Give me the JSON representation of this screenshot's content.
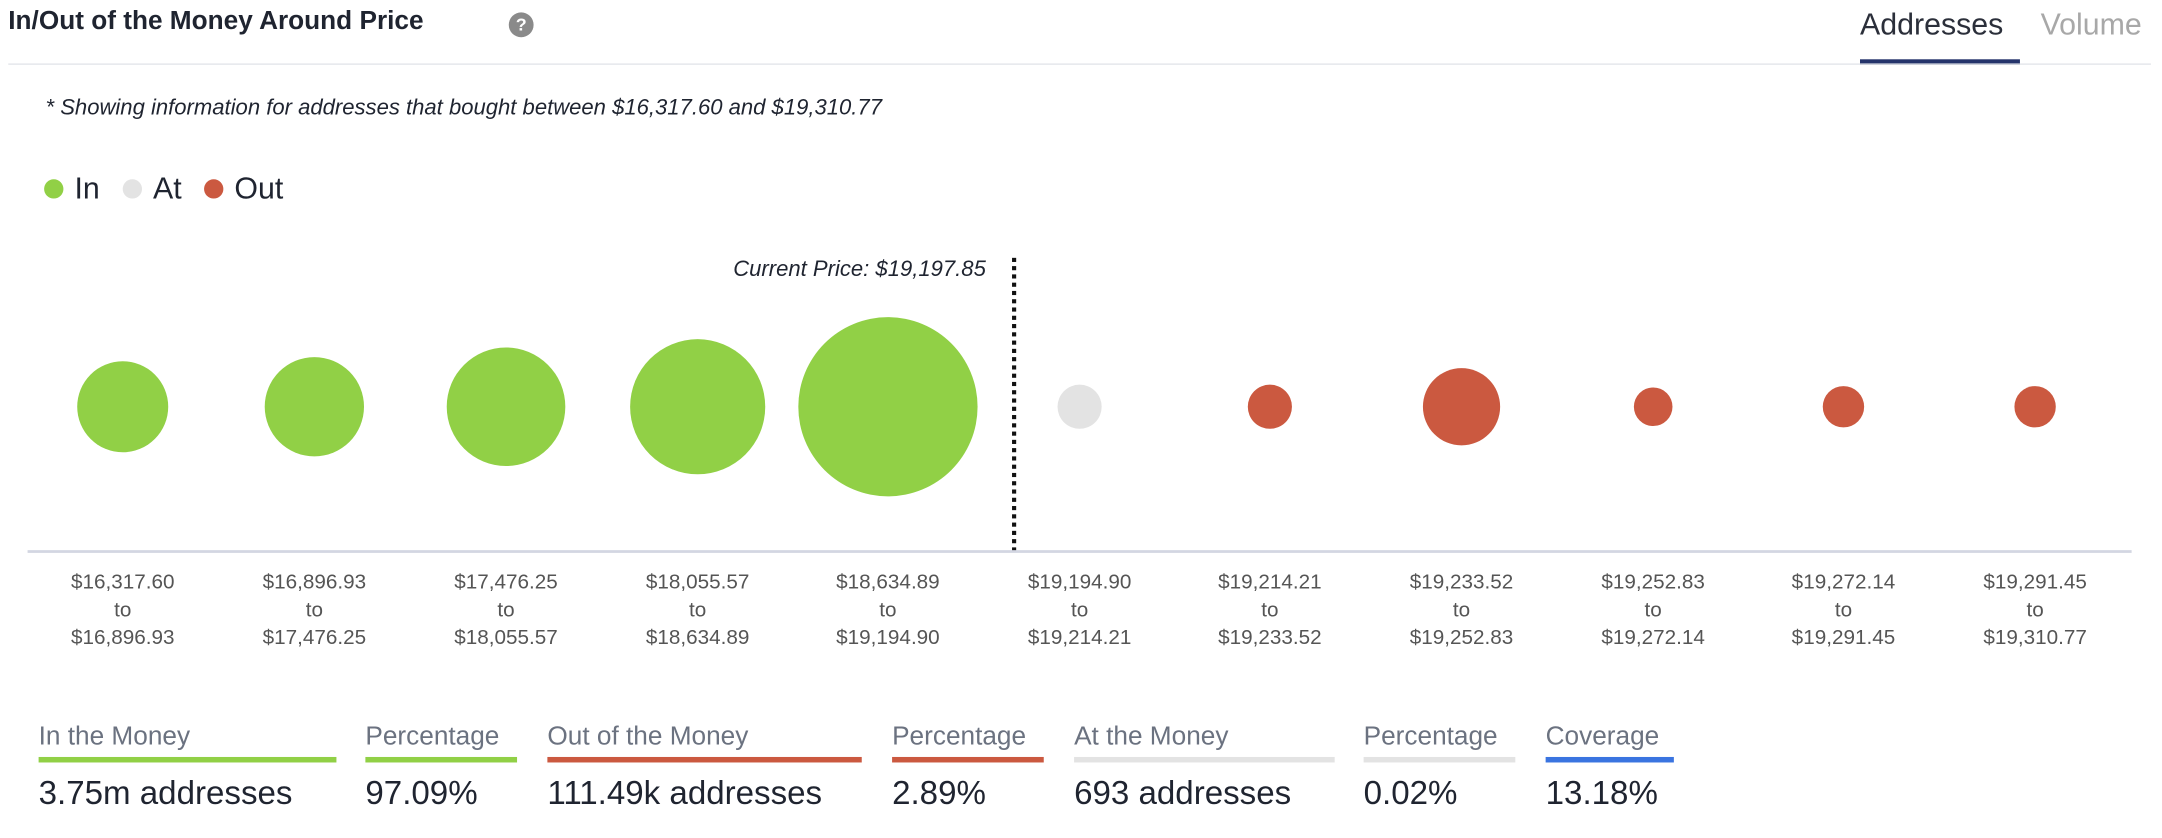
{
  "header": {
    "title": "In/Out of the Money Around Price",
    "help_icon": "question-circle-icon",
    "tabs": [
      {
        "label": "Addresses",
        "active": true
      },
      {
        "label": "Volume",
        "active": false
      }
    ]
  },
  "note": "* Showing information for addresses that bought between $16,317.60 and $19,310.77",
  "colors": {
    "in": "#91d046",
    "at": "#e3e3e3",
    "out": "#cb5940",
    "coverage": "#3a74e0",
    "tab_active": "#25346b"
  },
  "chart_data": {
    "type": "scatter",
    "title": "In/Out of the Money Around Price",
    "legend": [
      {
        "label": "In",
        "key": "in"
      },
      {
        "label": "At",
        "key": "at"
      },
      {
        "label": "Out",
        "key": "out"
      }
    ],
    "legend_placement": "top-left",
    "current_price_label": "Current Price: $19,197.85",
    "current_price_after_index": 4,
    "categories": [
      {
        "from": "$16,317.60",
        "sep": "to",
        "to": "$16,896.93",
        "status": "in",
        "relative_size": 33
      },
      {
        "from": "$16,896.93",
        "sep": "to",
        "to": "$17,476.25",
        "status": "in",
        "relative_size": 36
      },
      {
        "from": "$17,476.25",
        "sep": "to",
        "to": "$18,055.57",
        "status": "in",
        "relative_size": 43
      },
      {
        "from": "$18,055.57",
        "sep": "to",
        "to": "$18,634.89",
        "status": "in",
        "relative_size": 49
      },
      {
        "from": "$18,634.89",
        "sep": "to",
        "to": "$19,194.90",
        "status": "in",
        "relative_size": 65
      },
      {
        "from": "$19,194.90",
        "sep": "to",
        "to": "$19,214.21",
        "status": "at",
        "relative_size": 16
      },
      {
        "from": "$19,214.21",
        "sep": "to",
        "to": "$19,233.52",
        "status": "out",
        "relative_size": 16
      },
      {
        "from": "$19,233.52",
        "sep": "to",
        "to": "$19,252.83",
        "status": "out",
        "relative_size": 28
      },
      {
        "from": "$19,252.83",
        "sep": "to",
        "to": "$19,272.14",
        "status": "out",
        "relative_size": 14
      },
      {
        "from": "$19,272.14",
        "sep": "to",
        "to": "$19,291.45",
        "status": "out",
        "relative_size": 15
      },
      {
        "from": "$19,291.45",
        "sep": "to",
        "to": "$19,310.77",
        "status": "out",
        "relative_size": 15
      }
    ]
  },
  "stats": [
    {
      "label": "In the Money",
      "value": "3.75m addresses",
      "color": "#91d046"
    },
    {
      "label": "Percentage",
      "value": "97.09%",
      "color": "#91d046"
    },
    {
      "label": "Out of the Money",
      "value": "111.49k addresses",
      "color": "#cb5940"
    },
    {
      "label": "Percentage",
      "value": "2.89%",
      "color": "#cb5940"
    },
    {
      "label": "At the Money",
      "value": "693 addresses",
      "color": "#e3e3e3"
    },
    {
      "label": "Percentage",
      "value": "0.02%",
      "color": "#e3e3e3"
    },
    {
      "label": "Coverage",
      "value": "13.18%",
      "color": "#3a74e0"
    }
  ]
}
